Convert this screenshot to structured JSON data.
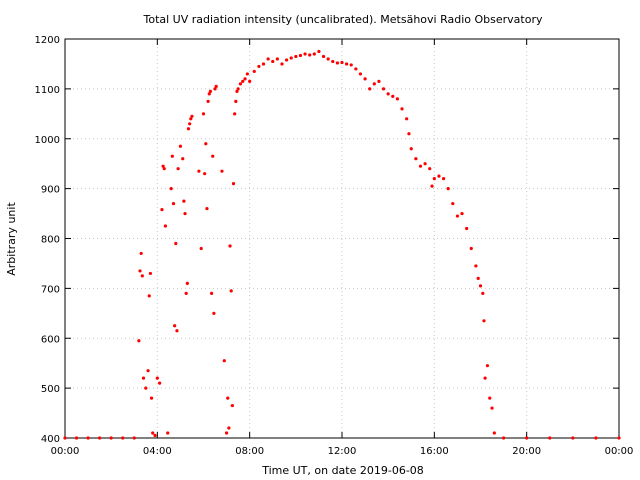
{
  "chart_data": {
    "type": "scatter",
    "title": "Total UV radiation intensity (uncalibrated). Metsähovi Radio Observatory",
    "xlabel": "Time UT, on date 2019-06-08",
    "ylabel": "Arbitrary unit",
    "xlim": [
      0,
      24
    ],
    "ylim": [
      400,
      1200
    ],
    "x_unit": "hours UT",
    "x_ticks": [
      0,
      4,
      8,
      12,
      16,
      20,
      24
    ],
    "x_tick_labels": [
      "00:00",
      "04:00",
      "08:00",
      "12:00",
      "16:00",
      "20:00",
      "00:00"
    ],
    "y_ticks": [
      400,
      500,
      600,
      700,
      800,
      900,
      1000,
      1100,
      1200
    ],
    "y_tick_labels": [
      "400",
      "500",
      "600",
      "700",
      "800",
      "900",
      "1000",
      "1100",
      "1200"
    ],
    "grid": true,
    "marker_color": "#ff0000",
    "series": [
      {
        "points": [
          [
            0.0,
            400
          ],
          [
            0.5,
            400
          ],
          [
            1.0,
            400
          ],
          [
            1.5,
            400
          ],
          [
            2.0,
            400
          ],
          [
            2.5,
            400
          ],
          [
            3.0,
            400
          ],
          [
            3.2,
            595
          ],
          [
            3.25,
            735
          ],
          [
            3.3,
            770
          ],
          [
            3.35,
            725
          ],
          [
            3.4,
            520
          ],
          [
            3.5,
            500
          ],
          [
            3.6,
            535
          ],
          [
            3.65,
            685
          ],
          [
            3.7,
            730
          ],
          [
            3.75,
            480
          ],
          [
            3.8,
            410
          ],
          [
            3.9,
            405
          ],
          [
            4.0,
            520
          ],
          [
            4.1,
            510
          ],
          [
            4.2,
            858
          ],
          [
            4.25,
            945
          ],
          [
            4.3,
            940
          ],
          [
            4.35,
            825
          ],
          [
            4.45,
            410
          ],
          [
            4.6,
            900
          ],
          [
            4.65,
            965
          ],
          [
            4.7,
            870
          ],
          [
            4.75,
            625
          ],
          [
            4.8,
            790
          ],
          [
            4.85,
            615
          ],
          [
            4.9,
            940
          ],
          [
            5.0,
            985
          ],
          [
            5.1,
            960
          ],
          [
            5.15,
            875
          ],
          [
            5.2,
            850
          ],
          [
            5.25,
            690
          ],
          [
            5.3,
            710
          ],
          [
            5.35,
            1020
          ],
          [
            5.4,
            1030
          ],
          [
            5.45,
            1040
          ],
          [
            5.5,
            1045
          ],
          [
            5.8,
            935
          ],
          [
            5.9,
            780
          ],
          [
            6.0,
            1050
          ],
          [
            6.05,
            930
          ],
          [
            6.1,
            990
          ],
          [
            6.15,
            860
          ],
          [
            6.2,
            1075
          ],
          [
            6.25,
            1090
          ],
          [
            6.3,
            1095
          ],
          [
            6.35,
            690
          ],
          [
            6.4,
            965
          ],
          [
            6.45,
            650
          ],
          [
            6.5,
            1100
          ],
          [
            6.55,
            1105
          ],
          [
            6.8,
            935
          ],
          [
            6.9,
            555
          ],
          [
            7.0,
            410
          ],
          [
            7.05,
            480
          ],
          [
            7.1,
            420
          ],
          [
            7.15,
            785
          ],
          [
            7.2,
            695
          ],
          [
            7.25,
            465
          ],
          [
            7.3,
            910
          ],
          [
            7.35,
            1050
          ],
          [
            7.4,
            1075
          ],
          [
            7.45,
            1095
          ],
          [
            7.5,
            1100
          ],
          [
            7.6,
            1110
          ],
          [
            7.7,
            1115
          ],
          [
            7.8,
            1120
          ],
          [
            7.9,
            1130
          ],
          [
            8.0,
            1115
          ],
          [
            8.2,
            1135
          ],
          [
            8.4,
            1145
          ],
          [
            8.6,
            1150
          ],
          [
            8.8,
            1160
          ],
          [
            9.0,
            1155
          ],
          [
            9.2,
            1160
          ],
          [
            9.4,
            1150
          ],
          [
            9.6,
            1158
          ],
          [
            9.8,
            1162
          ],
          [
            10.0,
            1165
          ],
          [
            10.2,
            1167
          ],
          [
            10.4,
            1170
          ],
          [
            10.6,
            1168
          ],
          [
            10.8,
            1170
          ],
          [
            11.0,
            1175
          ],
          [
            11.2,
            1165
          ],
          [
            11.4,
            1160
          ],
          [
            11.6,
            1155
          ],
          [
            11.8,
            1152
          ],
          [
            12.0,
            1153
          ],
          [
            12.2,
            1150
          ],
          [
            12.4,
            1148
          ],
          [
            12.6,
            1140
          ],
          [
            12.8,
            1130
          ],
          [
            13.0,
            1120
          ],
          [
            13.2,
            1100
          ],
          [
            13.4,
            1110
          ],
          [
            13.6,
            1115
          ],
          [
            13.8,
            1100
          ],
          [
            14.0,
            1090
          ],
          [
            14.2,
            1085
          ],
          [
            14.4,
            1080
          ],
          [
            14.6,
            1060
          ],
          [
            14.8,
            1040
          ],
          [
            14.9,
            1010
          ],
          [
            15.0,
            980
          ],
          [
            15.2,
            960
          ],
          [
            15.4,
            945
          ],
          [
            15.6,
            950
          ],
          [
            15.8,
            940
          ],
          [
            15.9,
            905
          ],
          [
            16.0,
            920
          ],
          [
            16.2,
            925
          ],
          [
            16.4,
            920
          ],
          [
            16.6,
            900
          ],
          [
            16.8,
            870
          ],
          [
            17.0,
            845
          ],
          [
            17.2,
            850
          ],
          [
            17.4,
            820
          ],
          [
            17.6,
            780
          ],
          [
            17.8,
            745
          ],
          [
            17.9,
            720
          ],
          [
            18.0,
            705
          ],
          [
            18.1,
            690
          ],
          [
            18.15,
            635
          ],
          [
            18.2,
            520
          ],
          [
            18.3,
            545
          ],
          [
            18.4,
            480
          ],
          [
            18.5,
            460
          ],
          [
            18.6,
            410
          ],
          [
            19.0,
            400
          ],
          [
            20.0,
            400
          ],
          [
            21.0,
            400
          ],
          [
            22.0,
            400
          ],
          [
            23.0,
            400
          ],
          [
            24.0,
            400
          ]
        ]
      }
    ]
  }
}
